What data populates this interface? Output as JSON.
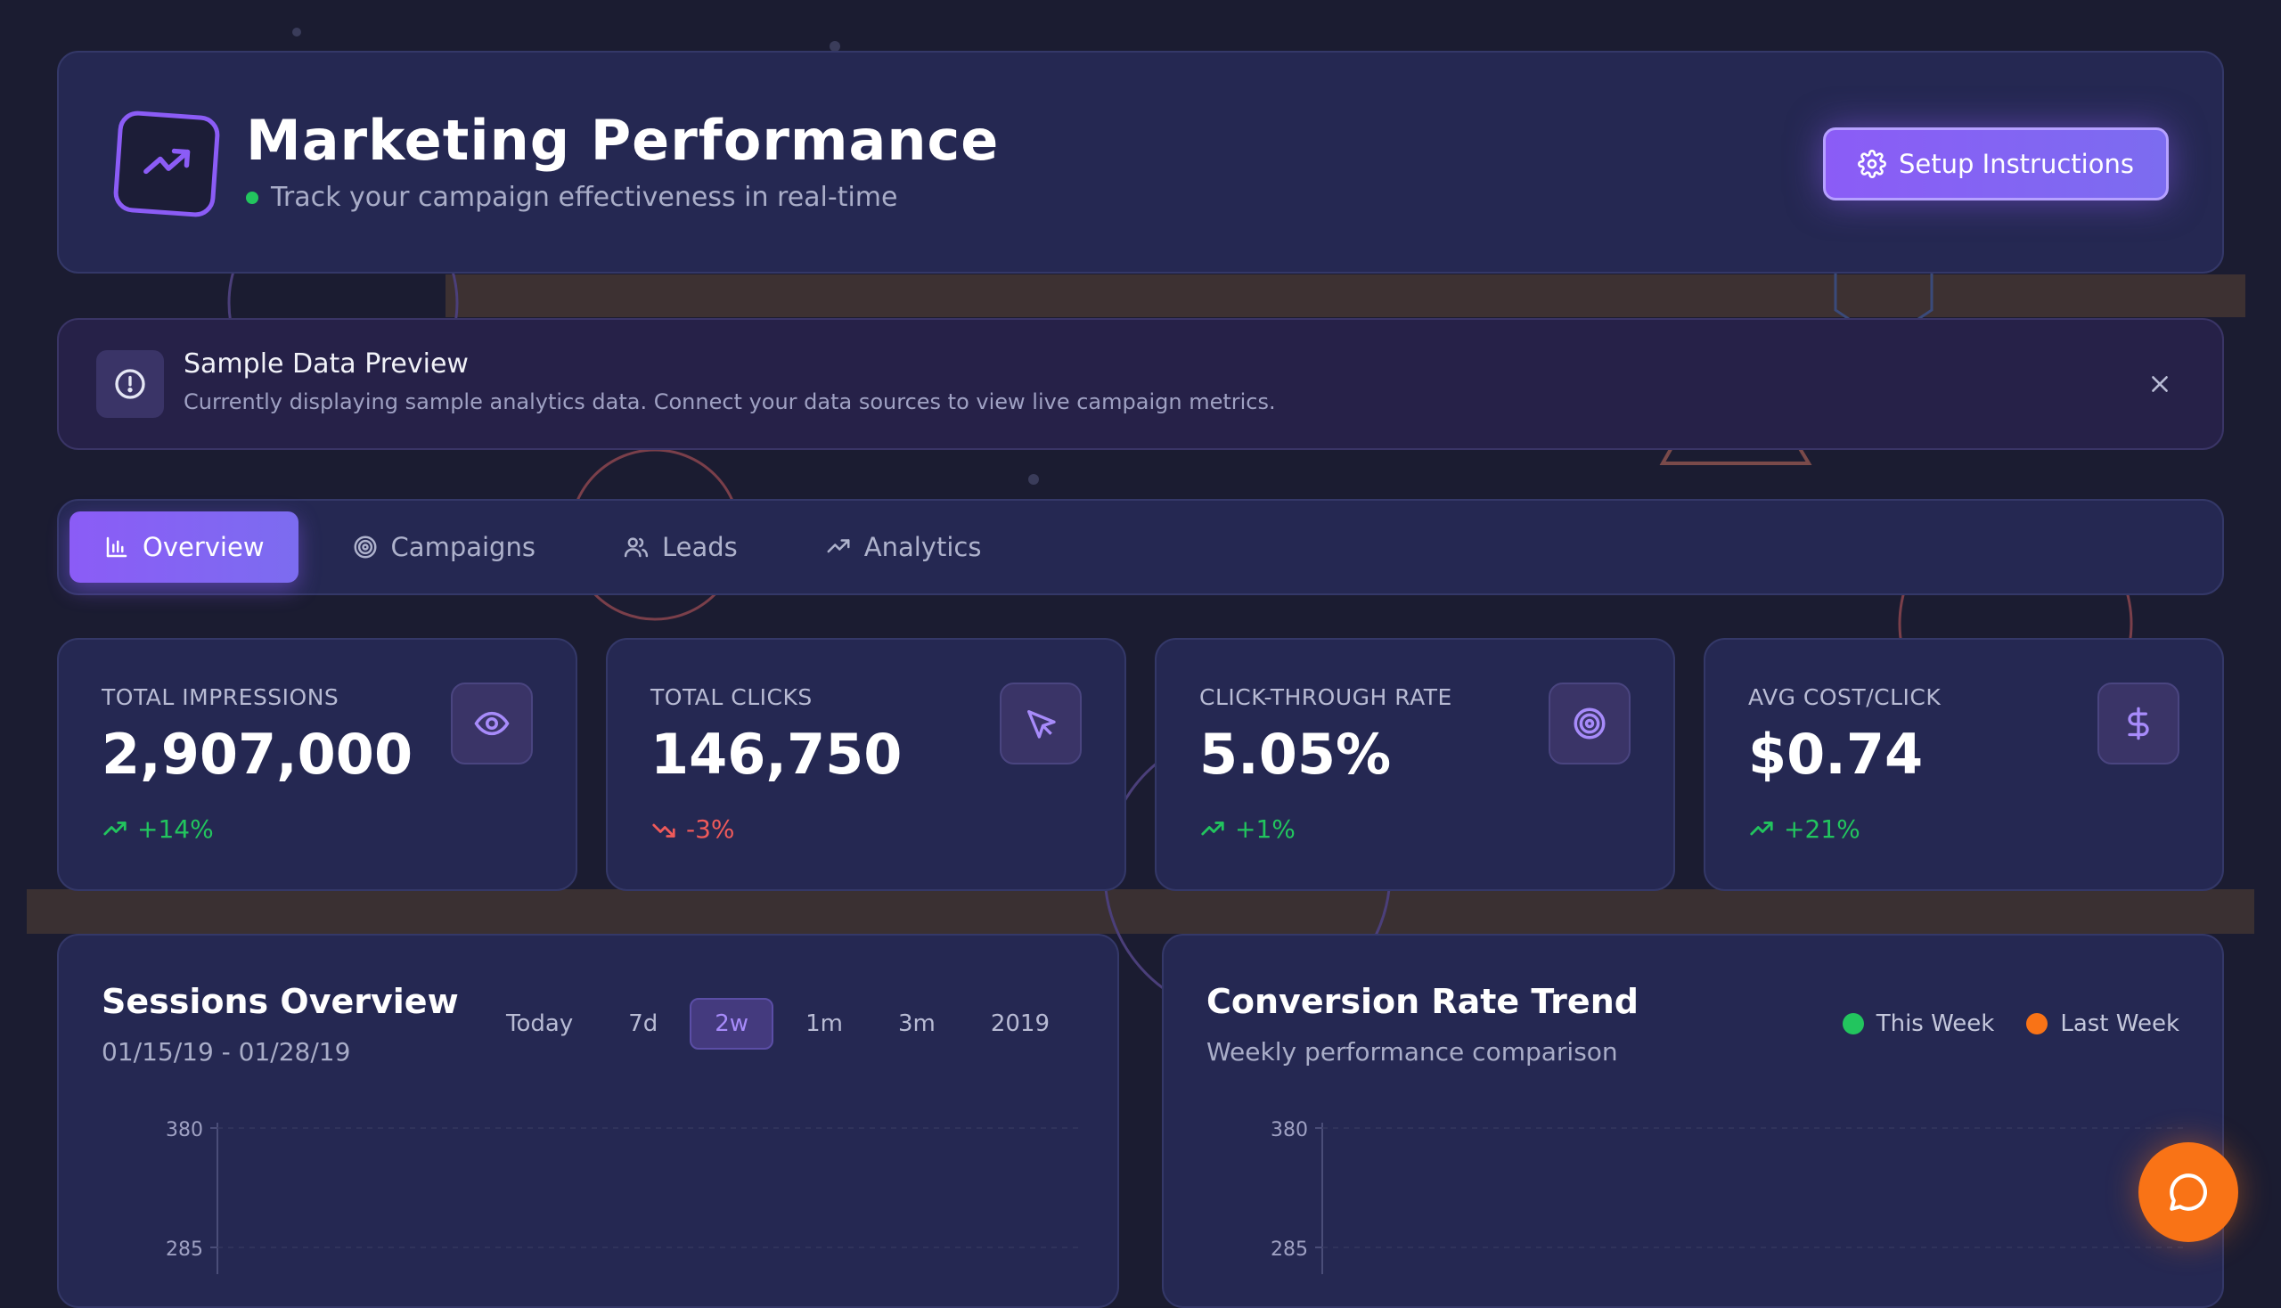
{
  "header": {
    "title": "Marketing Performance",
    "subtitle": "Track your campaign effectiveness in real-time",
    "setup_label": "Setup Instructions"
  },
  "banner": {
    "title": "Sample Data Preview",
    "text": "Currently displaying sample analytics data. Connect your data sources to view live campaign metrics."
  },
  "tabs": [
    {
      "label": "Overview",
      "icon": "bar-chart-icon",
      "active": true
    },
    {
      "label": "Campaigns",
      "icon": "target-icon",
      "active": false
    },
    {
      "label": "Leads",
      "icon": "users-icon",
      "active": false
    },
    {
      "label": "Analytics",
      "icon": "trending-up-icon",
      "active": false
    }
  ],
  "stats": [
    {
      "label": "TOTAL IMPRESSIONS",
      "value": "2,907,000",
      "change": "+14%",
      "trend": "up",
      "icon": "eye-icon"
    },
    {
      "label": "TOTAL CLICKS",
      "value": "146,750",
      "change": "-3%",
      "trend": "down",
      "icon": "cursor-icon"
    },
    {
      "label": "CLICK-THROUGH RATE",
      "value": "5.05%",
      "change": "+1%",
      "trend": "up",
      "icon": "target-icon"
    },
    {
      "label": "AVG COST/CLICK",
      "value": "$0.74",
      "change": "+21%",
      "trend": "up",
      "icon": "dollar-icon"
    }
  ],
  "sessions": {
    "title": "Sessions Overview",
    "date_range": "01/15/19 - 01/28/19",
    "ranges": [
      "Today",
      "7d",
      "2w",
      "1m",
      "3m",
      "2019"
    ],
    "active_range": "2w",
    "y_ticks": [
      "380",
      "285"
    ]
  },
  "conversion": {
    "title": "Conversion Rate Trend",
    "subtitle": "Weekly performance comparison",
    "legend": [
      {
        "label": "This Week",
        "color": "#22c55e"
      },
      {
        "label": "Last Week",
        "color": "#f97316"
      }
    ],
    "y_ticks": [
      "380",
      "285"
    ]
  },
  "colors": {
    "accent": "#8b5cf6",
    "positive": "#22c55e",
    "negative": "#ef5a5a",
    "fab": "#f97316"
  },
  "fab": {
    "icon": "chat-icon"
  }
}
